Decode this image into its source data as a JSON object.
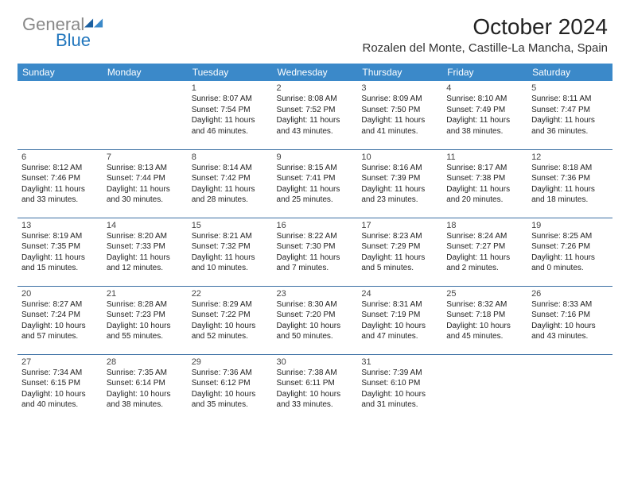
{
  "logo": {
    "text_gray": "General",
    "text_blue": "Blue"
  },
  "title": "October 2024",
  "location": "Rozalen del Monte, Castille-La Mancha, Spain",
  "colors": {
    "header_bg": "#3b89c9",
    "header_text": "#ffffff",
    "row_border": "#3b6fa3",
    "logo_gray": "#888888",
    "logo_blue": "#2176bd",
    "body_text": "#222222"
  },
  "day_headers": [
    "Sunday",
    "Monday",
    "Tuesday",
    "Wednesday",
    "Thursday",
    "Friday",
    "Saturday"
  ],
  "weeks": [
    [
      null,
      null,
      {
        "n": "1",
        "sunrise": "8:07 AM",
        "sunset": "7:54 PM",
        "dl1": "Daylight: 11 hours",
        "dl2": "and 46 minutes."
      },
      {
        "n": "2",
        "sunrise": "8:08 AM",
        "sunset": "7:52 PM",
        "dl1": "Daylight: 11 hours",
        "dl2": "and 43 minutes."
      },
      {
        "n": "3",
        "sunrise": "8:09 AM",
        "sunset": "7:50 PM",
        "dl1": "Daylight: 11 hours",
        "dl2": "and 41 minutes."
      },
      {
        "n": "4",
        "sunrise": "8:10 AM",
        "sunset": "7:49 PM",
        "dl1": "Daylight: 11 hours",
        "dl2": "and 38 minutes."
      },
      {
        "n": "5",
        "sunrise": "8:11 AM",
        "sunset": "7:47 PM",
        "dl1": "Daylight: 11 hours",
        "dl2": "and 36 minutes."
      }
    ],
    [
      {
        "n": "6",
        "sunrise": "8:12 AM",
        "sunset": "7:46 PM",
        "dl1": "Daylight: 11 hours",
        "dl2": "and 33 minutes."
      },
      {
        "n": "7",
        "sunrise": "8:13 AM",
        "sunset": "7:44 PM",
        "dl1": "Daylight: 11 hours",
        "dl2": "and 30 minutes."
      },
      {
        "n": "8",
        "sunrise": "8:14 AM",
        "sunset": "7:42 PM",
        "dl1": "Daylight: 11 hours",
        "dl2": "and 28 minutes."
      },
      {
        "n": "9",
        "sunrise": "8:15 AM",
        "sunset": "7:41 PM",
        "dl1": "Daylight: 11 hours",
        "dl2": "and 25 minutes."
      },
      {
        "n": "10",
        "sunrise": "8:16 AM",
        "sunset": "7:39 PM",
        "dl1": "Daylight: 11 hours",
        "dl2": "and 23 minutes."
      },
      {
        "n": "11",
        "sunrise": "8:17 AM",
        "sunset": "7:38 PM",
        "dl1": "Daylight: 11 hours",
        "dl2": "and 20 minutes."
      },
      {
        "n": "12",
        "sunrise": "8:18 AM",
        "sunset": "7:36 PM",
        "dl1": "Daylight: 11 hours",
        "dl2": "and 18 minutes."
      }
    ],
    [
      {
        "n": "13",
        "sunrise": "8:19 AM",
        "sunset": "7:35 PM",
        "dl1": "Daylight: 11 hours",
        "dl2": "and 15 minutes."
      },
      {
        "n": "14",
        "sunrise": "8:20 AM",
        "sunset": "7:33 PM",
        "dl1": "Daylight: 11 hours",
        "dl2": "and 12 minutes."
      },
      {
        "n": "15",
        "sunrise": "8:21 AM",
        "sunset": "7:32 PM",
        "dl1": "Daylight: 11 hours",
        "dl2": "and 10 minutes."
      },
      {
        "n": "16",
        "sunrise": "8:22 AM",
        "sunset": "7:30 PM",
        "dl1": "Daylight: 11 hours",
        "dl2": "and 7 minutes."
      },
      {
        "n": "17",
        "sunrise": "8:23 AM",
        "sunset": "7:29 PM",
        "dl1": "Daylight: 11 hours",
        "dl2": "and 5 minutes."
      },
      {
        "n": "18",
        "sunrise": "8:24 AM",
        "sunset": "7:27 PM",
        "dl1": "Daylight: 11 hours",
        "dl2": "and 2 minutes."
      },
      {
        "n": "19",
        "sunrise": "8:25 AM",
        "sunset": "7:26 PM",
        "dl1": "Daylight: 11 hours",
        "dl2": "and 0 minutes."
      }
    ],
    [
      {
        "n": "20",
        "sunrise": "8:27 AM",
        "sunset": "7:24 PM",
        "dl1": "Daylight: 10 hours",
        "dl2": "and 57 minutes."
      },
      {
        "n": "21",
        "sunrise": "8:28 AM",
        "sunset": "7:23 PM",
        "dl1": "Daylight: 10 hours",
        "dl2": "and 55 minutes."
      },
      {
        "n": "22",
        "sunrise": "8:29 AM",
        "sunset": "7:22 PM",
        "dl1": "Daylight: 10 hours",
        "dl2": "and 52 minutes."
      },
      {
        "n": "23",
        "sunrise": "8:30 AM",
        "sunset": "7:20 PM",
        "dl1": "Daylight: 10 hours",
        "dl2": "and 50 minutes."
      },
      {
        "n": "24",
        "sunrise": "8:31 AM",
        "sunset": "7:19 PM",
        "dl1": "Daylight: 10 hours",
        "dl2": "and 47 minutes."
      },
      {
        "n": "25",
        "sunrise": "8:32 AM",
        "sunset": "7:18 PM",
        "dl1": "Daylight: 10 hours",
        "dl2": "and 45 minutes."
      },
      {
        "n": "26",
        "sunrise": "8:33 AM",
        "sunset": "7:16 PM",
        "dl1": "Daylight: 10 hours",
        "dl2": "and 43 minutes."
      }
    ],
    [
      {
        "n": "27",
        "sunrise": "7:34 AM",
        "sunset": "6:15 PM",
        "dl1": "Daylight: 10 hours",
        "dl2": "and 40 minutes."
      },
      {
        "n": "28",
        "sunrise": "7:35 AM",
        "sunset": "6:14 PM",
        "dl1": "Daylight: 10 hours",
        "dl2": "and 38 minutes."
      },
      {
        "n": "29",
        "sunrise": "7:36 AM",
        "sunset": "6:12 PM",
        "dl1": "Daylight: 10 hours",
        "dl2": "and 35 minutes."
      },
      {
        "n": "30",
        "sunrise": "7:38 AM",
        "sunset": "6:11 PM",
        "dl1": "Daylight: 10 hours",
        "dl2": "and 33 minutes."
      },
      {
        "n": "31",
        "sunrise": "7:39 AM",
        "sunset": "6:10 PM",
        "dl1": "Daylight: 10 hours",
        "dl2": "and 31 minutes."
      },
      null,
      null
    ]
  ]
}
